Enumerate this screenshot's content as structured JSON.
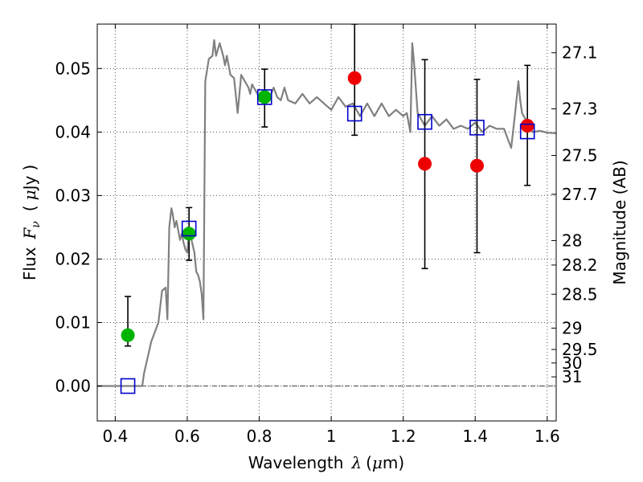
{
  "chart_data": {
    "type": "scatter",
    "title": "",
    "xlabel_parts": [
      "Wavelength",
      "λ",
      "(",
      "μ",
      "m)"
    ],
    "ylabel_parts": [
      "Flux",
      "F",
      "ν",
      "(",
      "μ",
      "Jy",
      ")"
    ],
    "y2label": "Magnitude (AB)",
    "xlim": [
      0.35,
      1.625
    ],
    "ylim": [
      -0.0055,
      0.057
    ],
    "x_ticks": [
      0.4,
      0.6,
      0.8,
      1.0,
      1.2,
      1.4,
      1.6
    ],
    "x_tick_labels": [
      "0.4",
      "0.6",
      "0.8",
      "1",
      "1.2",
      "1.4",
      "1.6"
    ],
    "y_ticks": [
      0.0,
      0.01,
      0.02,
      0.03,
      0.04,
      0.05
    ],
    "y_tick_labels": [
      "0.00",
      "0.01",
      "0.02",
      "0.03",
      "0.04",
      "0.05"
    ],
    "mag_ticks": [
      27.1,
      27.3,
      27.5,
      27.7,
      28,
      28.2,
      28.5,
      29,
      29.5,
      30,
      31
    ],
    "mag_tick_labels": [
      "27.1",
      "27.3",
      "27.5",
      "27.7",
      "28",
      "28.2",
      "28.5",
      "29",
      "29.5",
      "30",
      "31"
    ],
    "grid": true,
    "colors": {
      "template": "#808080",
      "green_points": "#00b400",
      "red_points": "#ee0000",
      "model_squares": "#0000cc",
      "errorbar": "#000000"
    },
    "template_spectrum": {
      "x": [
        0.35,
        0.46,
        0.475,
        0.48,
        0.5,
        0.52,
        0.53,
        0.54,
        0.545,
        0.55,
        0.556,
        0.56,
        0.565,
        0.57,
        0.575,
        0.58,
        0.585,
        0.59,
        0.595,
        0.6,
        0.605,
        0.61,
        0.62,
        0.625,
        0.63,
        0.635,
        0.64,
        0.645,
        0.65,
        0.66,
        0.67,
        0.675,
        0.68,
        0.69,
        0.7,
        0.705,
        0.71,
        0.72,
        0.73,
        0.74,
        0.75,
        0.76,
        0.77,
        0.775,
        0.78,
        0.79,
        0.8,
        0.81,
        0.82,
        0.83,
        0.84,
        0.85,
        0.86,
        0.87,
        0.88,
        0.9,
        0.92,
        0.94,
        0.96,
        0.98,
        1.0,
        1.02,
        1.04,
        1.06,
        1.08,
        1.1,
        1.12,
        1.14,
        1.16,
        1.18,
        1.2,
        1.21,
        1.22,
        1.225,
        1.23,
        1.24,
        1.26,
        1.28,
        1.3,
        1.32,
        1.34,
        1.36,
        1.38,
        1.4,
        1.42,
        1.44,
        1.46,
        1.48,
        1.5,
        1.51,
        1.52,
        1.525,
        1.53,
        1.54,
        1.55,
        1.56,
        1.58,
        1.6,
        1.625
      ],
      "y": [
        0.0,
        0.0,
        0.0,
        0.002,
        0.007,
        0.01,
        0.015,
        0.0155,
        0.0105,
        0.025,
        0.028,
        0.027,
        0.025,
        0.026,
        0.0245,
        0.023,
        0.024,
        0.0225,
        0.0215,
        0.021,
        0.024,
        0.0235,
        0.021,
        0.018,
        0.0175,
        0.0165,
        0.0145,
        0.0105,
        0.048,
        0.0515,
        0.052,
        0.0545,
        0.052,
        0.054,
        0.052,
        0.0505,
        0.052,
        0.049,
        0.0485,
        0.043,
        0.049,
        0.048,
        0.047,
        0.046,
        0.0475,
        0.0465,
        0.0455,
        0.046,
        0.046,
        0.0455,
        0.047,
        0.0455,
        0.045,
        0.047,
        0.045,
        0.0445,
        0.046,
        0.0445,
        0.0455,
        0.0445,
        0.0435,
        0.0455,
        0.044,
        0.0445,
        0.0425,
        0.0445,
        0.0425,
        0.0445,
        0.0425,
        0.0435,
        0.0425,
        0.043,
        0.04,
        0.054,
        0.051,
        0.043,
        0.041,
        0.0425,
        0.041,
        0.042,
        0.0405,
        0.041,
        0.0405,
        0.0415,
        0.04,
        0.041,
        0.0405,
        0.0405,
        0.0375,
        0.0425,
        0.048,
        0.045,
        0.043,
        0.042,
        0.0408,
        0.04,
        0.0402,
        0.0399,
        0.0398
      ]
    },
    "series": [
      {
        "marker": "circle",
        "color": "#00b400",
        "points": [
          {
            "x": 0.435,
            "y": 0.008,
            "err_low": 0.0063,
            "err_high": 0.0141
          },
          {
            "x": 0.605,
            "y": 0.024,
            "err_low": 0.0198,
            "err_high": 0.0281
          },
          {
            "x": 0.815,
            "y": 0.0455,
            "err_low": 0.0408,
            "err_high": 0.0499
          }
        ]
      },
      {
        "marker": "circle",
        "color": "#ee0000",
        "points": [
          {
            "x": 1.065,
            "y": 0.0485,
            "err_low": 0.0395,
            "err_high": 0.057
          },
          {
            "x": 1.26,
            "y": 0.035,
            "err_low": 0.0185,
            "err_high": 0.0514
          },
          {
            "x": 1.405,
            "y": 0.0347,
            "err_low": 0.021,
            "err_high": 0.0483
          },
          {
            "x": 1.545,
            "y": 0.041,
            "err_low": 0.0316,
            "err_high": 0.0505
          }
        ]
      },
      {
        "marker": "square",
        "color": "#0000cc",
        "points": [
          {
            "x": 0.435,
            "y": 0.0
          },
          {
            "x": 0.605,
            "y": 0.0248
          },
          {
            "x": 0.815,
            "y": 0.0455
          },
          {
            "x": 1.065,
            "y": 0.0429
          },
          {
            "x": 1.26,
            "y": 0.0416
          },
          {
            "x": 1.405,
            "y": 0.0407
          },
          {
            "x": 1.545,
            "y": 0.0401
          }
        ]
      }
    ]
  }
}
